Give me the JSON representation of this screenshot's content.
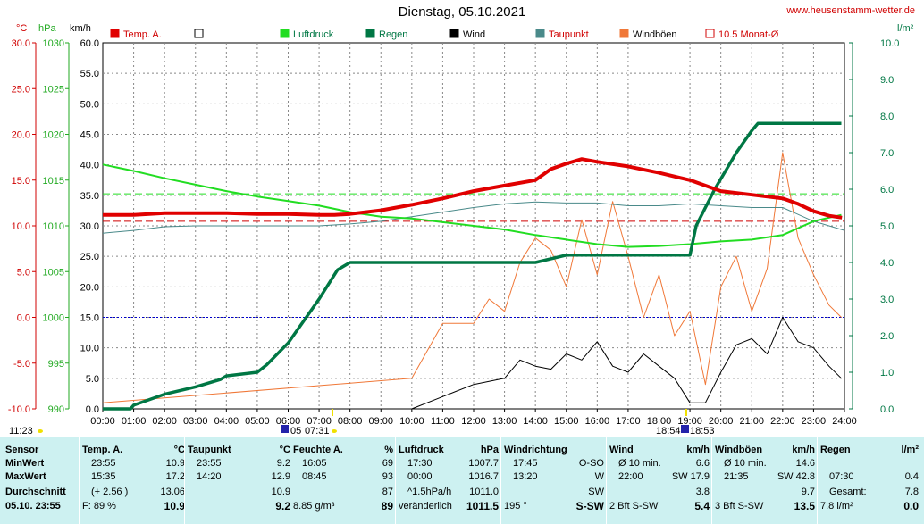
{
  "header": {
    "title": "Dienstag, 05.10.2021",
    "url": "www.heusenstamm-wetter.de",
    "unit_temp": "°C",
    "unit_hpa": "hPa",
    "unit_kmh": "km/h",
    "unit_rain": "l/m²"
  },
  "legend": [
    {
      "label": "Temp. A.",
      "color": "#e00000",
      "filled": true
    },
    {
      "label": "",
      "color": "#000000",
      "filled": false
    },
    {
      "label": "Luftdruck",
      "color": "#22dd22",
      "filled": true
    },
    {
      "label": "Regen",
      "color": "#007744",
      "filled": true
    },
    {
      "label": "Wind",
      "color": "#000000",
      "filled": true
    },
    {
      "label": "Taupunkt",
      "color": "#4a8a8a",
      "filled": true
    },
    {
      "label": "Windböen",
      "color": "#f07838",
      "filled": true
    },
    {
      "label": "10.5 Monat-Ø",
      "color": "#d00000",
      "filled": false
    }
  ],
  "axes": {
    "temp_ticks": [
      "30.0",
      "25.0",
      "20.0",
      "15.0",
      "10.0",
      "5.0",
      "0.0",
      "-5.0",
      "-10.0"
    ],
    "hpa_ticks": [
      "1030",
      "1025",
      "1020",
      "1015",
      "1010",
      "1005",
      "1000",
      "995",
      "990"
    ],
    "kmh_ticks": [
      "60.0",
      "55.0",
      "50.0",
      "45.0",
      "40.0",
      "35.0",
      "30.0",
      "25.0",
      "20.0",
      "15.0",
      "10.0",
      "5.0",
      "0.0"
    ],
    "rain_ticks": [
      "10.0",
      "9.0",
      "8.0",
      "7.0",
      "6.0",
      "5.0",
      "4.0",
      "3.0",
      "2.0",
      "1.0",
      "0.0"
    ],
    "x_ticks": [
      "00:00",
      "01:00",
      "02:00",
      "03:00",
      "04:00",
      "05:00",
      "06:00",
      "07:00",
      "08:00",
      "09:00",
      "10:00",
      "11:00",
      "12:00",
      "13:00",
      "14:00",
      "15:00",
      "16:00",
      "17:00",
      "18:00",
      "19:00",
      "20:00",
      "21:00",
      "22:00",
      "23:00",
      "24:00"
    ],
    "sun": {
      "sunrise": "07:31",
      "sunset": "18:54",
      "moonrise": "11:23",
      "moon_a": "05",
      "moon_b": "18:53"
    }
  },
  "chart_data": {
    "type": "line",
    "x_unit": "hours",
    "xlim": [
      0,
      24
    ],
    "temp_ylim": [
      -10,
      30
    ],
    "pressure_ylim": [
      990,
      1030
    ],
    "wind_ylim": [
      0,
      60
    ],
    "rain_ylim": [
      0,
      10
    ],
    "monthly_avg_temp": 10.5,
    "series": [
      {
        "name": "Temp. A.",
        "axis": "temp",
        "color": "#e00000",
        "x": [
          0,
          1,
          2,
          3,
          4,
          5,
          6,
          7,
          7.5,
          8,
          9,
          10,
          11,
          12,
          13,
          14,
          14.5,
          15,
          15.5,
          16,
          17,
          18,
          19,
          20,
          21,
          22,
          22.5,
          23,
          23.5,
          23.92
        ],
        "y": [
          11.2,
          11.2,
          11.4,
          11.4,
          11.4,
          11.3,
          11.3,
          11.2,
          11.2,
          11.3,
          11.7,
          12.3,
          13.0,
          13.8,
          14.4,
          15.0,
          16.2,
          16.8,
          17.3,
          17.0,
          16.5,
          15.8,
          15.0,
          13.8,
          13.4,
          13.0,
          12.4,
          11.6,
          11.1,
          10.9
        ]
      },
      {
        "name": "Taupunkt",
        "axis": "temp",
        "color": "#4a8a8a",
        "x": [
          0,
          1,
          2,
          3,
          4,
          5,
          6,
          7,
          8,
          9,
          10,
          11,
          12,
          13,
          14,
          15,
          16,
          17,
          18,
          19,
          20,
          21,
          22,
          23,
          24
        ],
        "y": [
          9.2,
          9.5,
          9.9,
          10.0,
          10.0,
          10.0,
          10.0,
          10.0,
          10.2,
          10.5,
          11.0,
          11.5,
          12.0,
          12.4,
          12.6,
          12.5,
          12.5,
          12.2,
          12.2,
          12.4,
          12.2,
          12.0,
          12.0,
          10.5,
          9.5
        ]
      },
      {
        "name": "Luftdruck",
        "axis": "pressure",
        "color": "#22dd22",
        "x": [
          0,
          1,
          2,
          3,
          4,
          5,
          6,
          7,
          8,
          9,
          10,
          11,
          12,
          13,
          14,
          15,
          16,
          17,
          18,
          19,
          20,
          21,
          22,
          23,
          23.9
        ],
        "y": [
          1016.7,
          1016.0,
          1015.2,
          1014.5,
          1013.8,
          1013.2,
          1012.7,
          1012.2,
          1011.5,
          1011.0,
          1010.8,
          1010.4,
          1010.0,
          1009.6,
          1009.0,
          1008.5,
          1008.0,
          1007.7,
          1007.8,
          1008.0,
          1008.3,
          1008.5,
          1009.0,
          1010.5,
          1011.2
        ]
      },
      {
        "name": "Regen",
        "axis": "rain",
        "color": "#007744",
        "x": [
          0,
          0.9,
          1.0,
          2.0,
          3.0,
          3.8,
          4.0,
          5.0,
          5.3,
          6.0,
          6.5,
          7.0,
          7.6,
          8.0,
          9,
          10,
          11,
          12,
          13,
          14,
          15,
          16,
          17,
          18,
          19,
          19.2,
          19.8,
          20.5,
          21.0,
          21.2,
          23.9
        ],
        "y": [
          0,
          0,
          0.1,
          0.4,
          0.6,
          0.8,
          0.9,
          1.0,
          1.2,
          1.8,
          2.4,
          3.0,
          3.8,
          4.0,
          4.0,
          4.0,
          4.0,
          4.0,
          4.0,
          4.0,
          4.2,
          4.2,
          4.2,
          4.2,
          4.2,
          5.0,
          6.0,
          7.0,
          7.6,
          7.8,
          7.8
        ]
      },
      {
        "name": "Wind",
        "axis": "wind",
        "color": "#000000",
        "x": [
          0,
          10,
          11,
          12,
          13,
          13.5,
          14,
          14.5,
          15,
          15.5,
          16,
          16.5,
          17,
          17.5,
          18,
          18.5,
          19,
          19.5,
          20,
          20.5,
          21,
          21.5,
          22,
          22.5,
          23,
          23.5,
          23.9
        ],
        "y": [
          0,
          0,
          2.0,
          4.0,
          5.0,
          8.0,
          7.0,
          6.5,
          9.0,
          8.0,
          11.0,
          7.0,
          6.0,
          9.0,
          7.0,
          5.0,
          1.0,
          1.0,
          6.0,
          10.5,
          11.5,
          9.0,
          15.0,
          11.0,
          10.0,
          7.0,
          5.0
        ]
      },
      {
        "name": "Windböen",
        "axis": "wind",
        "color": "#f07838",
        "x": [
          0,
          10,
          11,
          12,
          12.5,
          13,
          13.5,
          14,
          14.5,
          15,
          15.5,
          16,
          16.5,
          17,
          17.5,
          18,
          18.5,
          19,
          19.5,
          20,
          20.5,
          21,
          21.5,
          22,
          22.5,
          23,
          23.5,
          23.9
        ],
        "y": [
          1.0,
          5.0,
          14.0,
          14.0,
          18.0,
          16.0,
          24.0,
          28.0,
          26.0,
          20.0,
          31.0,
          22.0,
          34.0,
          25.0,
          15.0,
          22.0,
          12.0,
          16.0,
          4.0,
          20.0,
          25.0,
          16.0,
          23.0,
          42.0,
          28.0,
          22.0,
          17.0,
          15.0
        ]
      }
    ]
  },
  "table": {
    "rows": [
      "Sensor",
      "MinWert",
      "MaxWert",
      "Durchschnitt",
      "05.10. 23:55"
    ],
    "temp": {
      "head": "Temp. A.",
      "unit": "°C",
      "c1": [
        "23:55",
        "15:35",
        "(+ 2.56 )",
        "F: 89 %"
      ],
      "c2": [
        "10.9",
        "17.2",
        "13.06",
        "10.9"
      ]
    },
    "taupunkt": {
      "head": "Taupunkt",
      "unit": "°C",
      "c1": [
        "23:55",
        "14:20",
        "",
        ""
      ],
      "c2": [
        "9.2",
        "12.9",
        "10.9",
        "9.2"
      ]
    },
    "feuchte": {
      "head": "Feuchte A.",
      "unit": "%",
      "c1": [
        "16:05",
        "08:45",
        "",
        "8.85 g/m³"
      ],
      "c2": [
        "69",
        "93",
        "87",
        "89"
      ]
    },
    "luftdruck": {
      "head": "Luftdruck",
      "unit": "hPa",
      "c1": [
        "17:30",
        "00:00",
        "^1.5hPa/h",
        "veränderlich"
      ],
      "c2": [
        "1007.7",
        "1016.7",
        "1011.0",
        "1011.5"
      ]
    },
    "windrichtung": {
      "head": "Windrichtung",
      "unit": "",
      "c1": [
        "17:45",
        "13:20",
        "",
        "195 °"
      ],
      "c2": [
        "O-SO",
        "W",
        "SW",
        "S-SW"
      ]
    },
    "wind": {
      "head": "Wind",
      "unit": "km/h",
      "c1": [
        "Ø 10 min.",
        "22:00",
        "",
        "2 Bft S-SW"
      ],
      "c2": [
        "6.6",
        "SW 17.9",
        "3.8",
        "5.4"
      ]
    },
    "windboeen": {
      "head": "Windböen",
      "unit": "km/h",
      "c1": [
        "Ø 10 min.",
        "21:35",
        "",
        "3 Bft S-SW"
      ],
      "c2": [
        "14.6",
        "SW 42.8",
        "9.7",
        "13.5"
      ]
    },
    "regen": {
      "head": "Regen",
      "unit": "l/m²",
      "c1": [
        "",
        "07:30",
        "Gesamt:",
        "7.8 l/m²"
      ],
      "c2": [
        "",
        "0.4",
        "7.8",
        "0.0"
      ]
    }
  }
}
